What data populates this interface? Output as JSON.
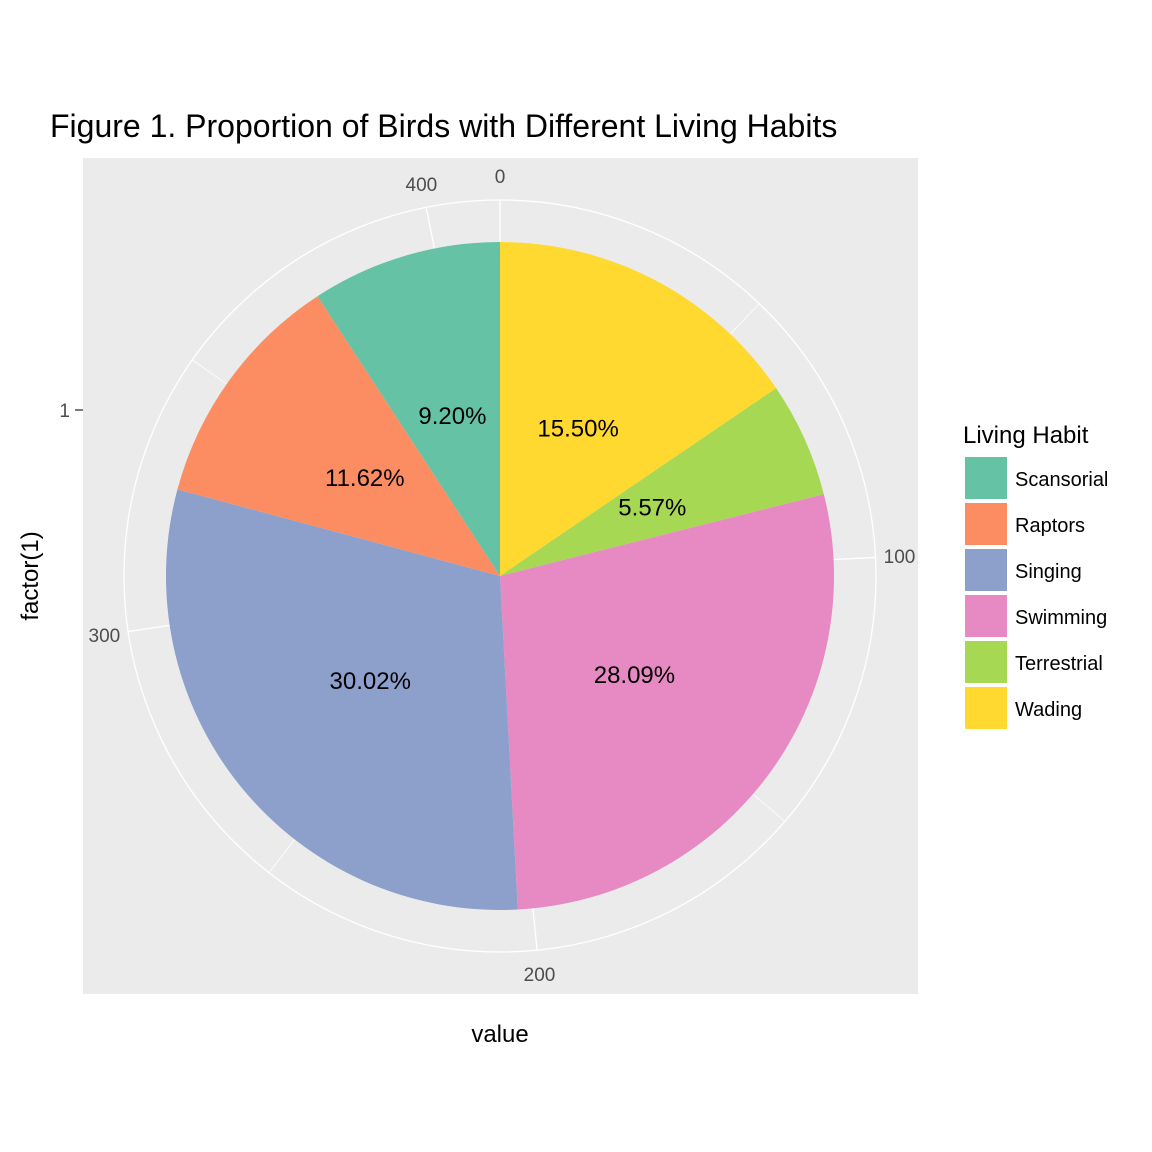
{
  "chart_data": {
    "type": "pie",
    "title": "Figure 1. Proportion of Birds with Different Living Habits",
    "xlabel": "value",
    "ylabel": "factor(1)",
    "y_tick_labels": [
      "1"
    ],
    "radial_ticks": [
      0,
      100,
      200,
      300,
      400
    ],
    "total": 413,
    "start_angle": "top",
    "direction": "clockwise",
    "grid": true,
    "legend": {
      "title": "Living Habit",
      "position": "right"
    },
    "slices": [
      {
        "name": "Wading",
        "value": 64,
        "label": "15.50%",
        "color": "#FFD92F"
      },
      {
        "name": "Terrestrial",
        "value": 23,
        "label": "5.57%",
        "color": "#A6D854"
      },
      {
        "name": "Swimming",
        "value": 116,
        "label": "28.09%",
        "color": "#E78AC3"
      },
      {
        "name": "Singing",
        "value": 124,
        "label": "30.02%",
        "color": "#8DA0CB"
      },
      {
        "name": "Raptors",
        "value": 48,
        "label": "11.62%",
        "color": "#FC8D62"
      },
      {
        "name": "Scansorial",
        "value": 38,
        "label": "9.20%",
        "color": "#66C2A5"
      }
    ],
    "legend_order": [
      "Scansorial",
      "Raptors",
      "Singing",
      "Swimming",
      "Terrestrial",
      "Wading"
    ],
    "colors": {
      "panel_background": "#EBEBEB",
      "grid": "#FFFFFF",
      "tick_text": "#4D4D4D"
    }
  }
}
